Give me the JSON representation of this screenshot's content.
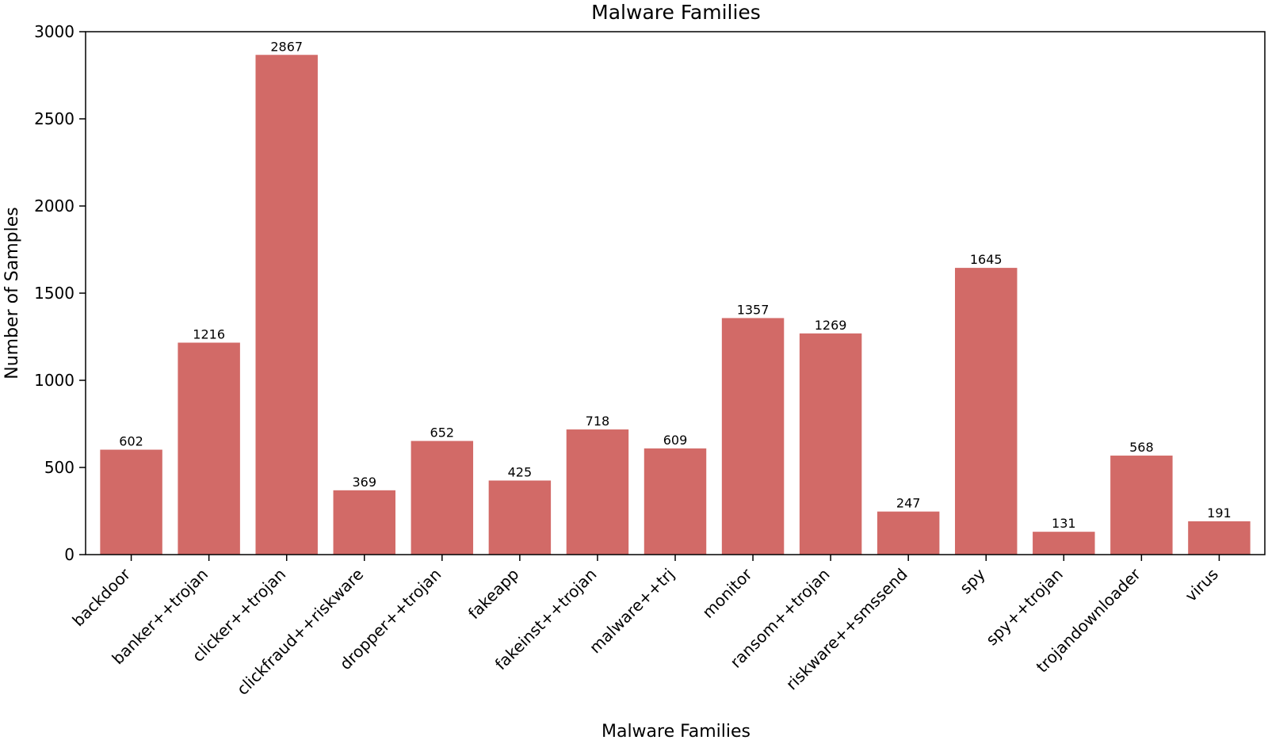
{
  "chart_data": {
    "type": "bar",
    "title": "Malware Families",
    "xlabel": "Malware Families",
    "ylabel": "Number of Samples",
    "categories": [
      "backdoor",
      "banker++trojan",
      "clicker++trojan",
      "clickfraud++riskware",
      "dropper++trojan",
      "fakeapp",
      "fakeinst++trojan",
      "malware++trj",
      "monitor",
      "ransom++trojan",
      "riskware++smssend",
      "spy",
      "spy++trojan",
      "trojandownloader",
      "virus"
    ],
    "values": [
      602,
      1216,
      2867,
      369,
      652,
      425,
      718,
      609,
      1357,
      1269,
      247,
      1645,
      131,
      568,
      191
    ],
    "ylim": [
      0,
      3000
    ],
    "yticks": [
      0,
      500,
      1000,
      1500,
      2000,
      2500,
      3000
    ],
    "grid": false,
    "legend": "none",
    "bar_color": "#d26a67"
  }
}
